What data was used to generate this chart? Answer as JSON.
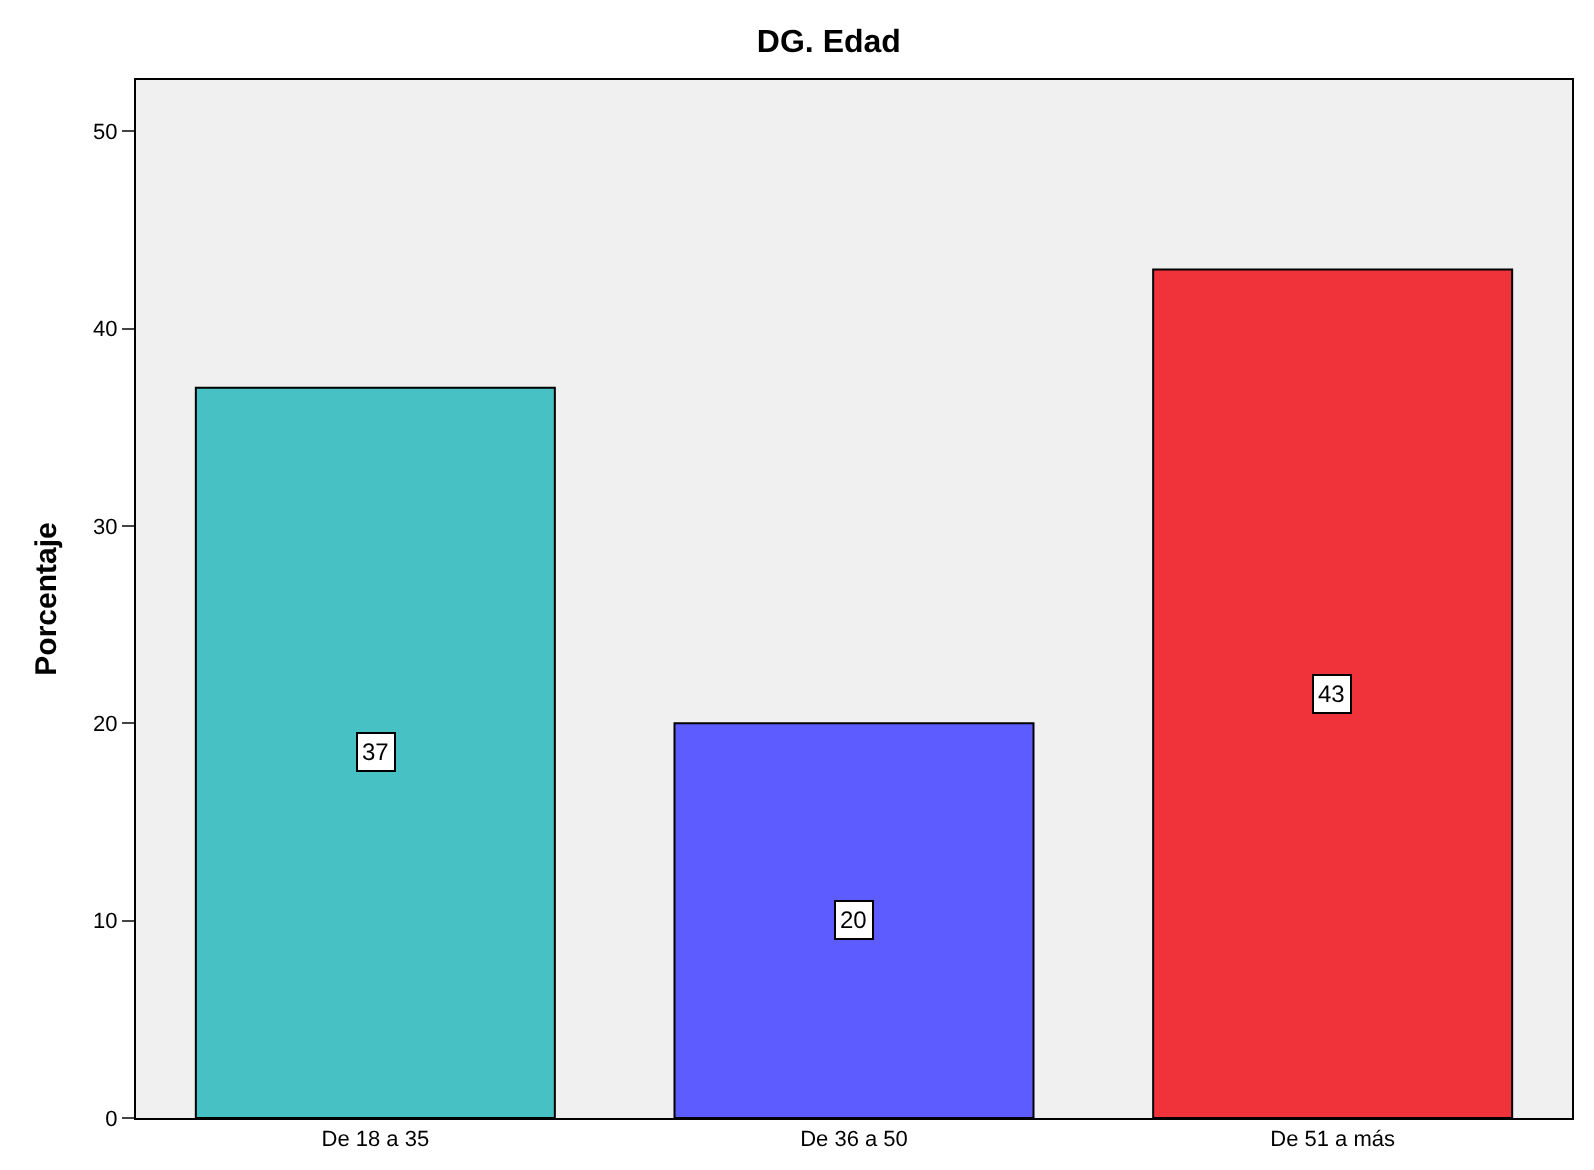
{
  "chart_data": {
    "type": "bar",
    "title": "DG. Edad",
    "ylabel": "Porcentaje",
    "categories": [
      "De 18 a 35",
      "De 36 a 50",
      "De 51 a más"
    ],
    "values": [
      37,
      20,
      43
    ],
    "colors": [
      "#48c1c4",
      "#5c5cff",
      "#f0323a"
    ],
    "ylim": [
      0,
      52.6
    ],
    "yticks": [
      0,
      10,
      20,
      30,
      40,
      50
    ],
    "grid": false,
    "legend": false,
    "data_labels": true
  }
}
